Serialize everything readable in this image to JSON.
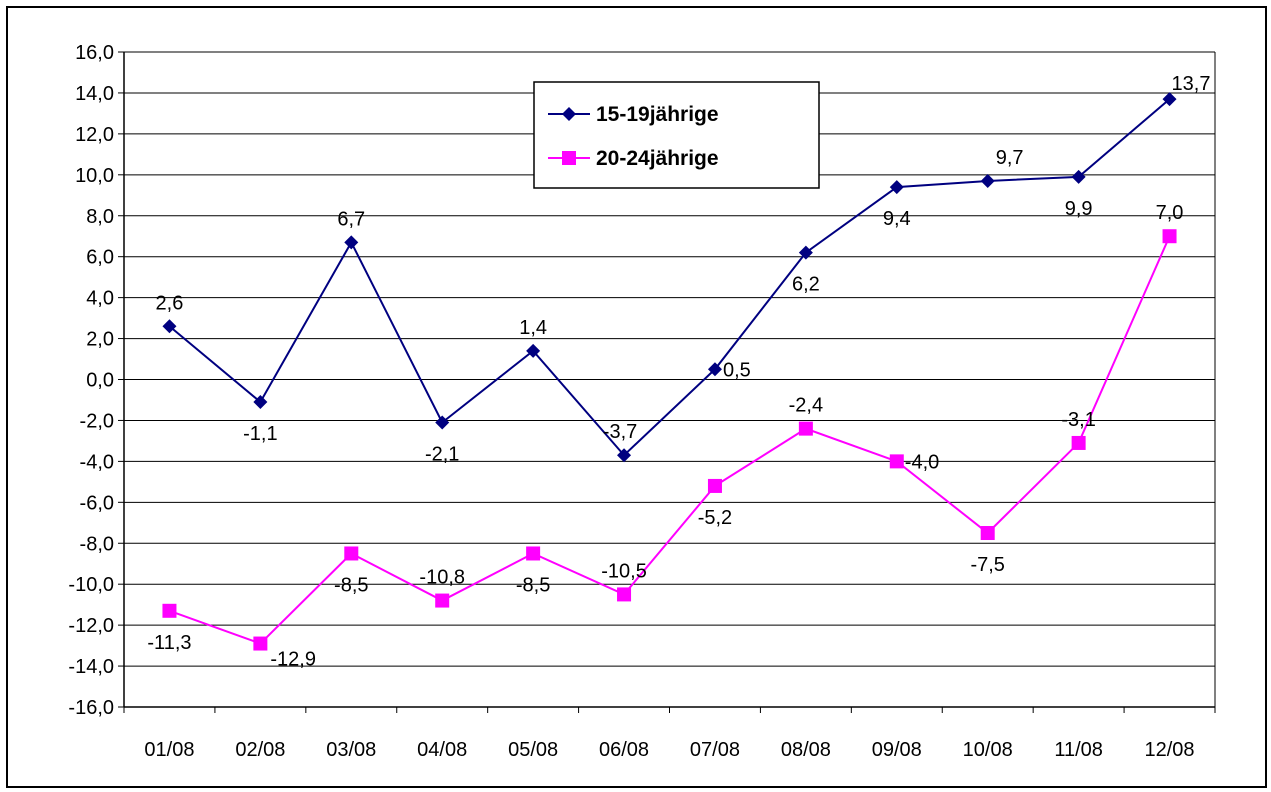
{
  "chart_data": {
    "type": "line",
    "categories": [
      "01/08",
      "02/08",
      "03/08",
      "04/08",
      "05/08",
      "06/08",
      "07/08",
      "08/08",
      "09/08",
      "10/08",
      "11/08",
      "12/08"
    ],
    "series": [
      {
        "name": "15-19jährige",
        "values": [
          2.6,
          -1.1,
          6.7,
          -2.1,
          1.4,
          -3.7,
          0.5,
          6.2,
          9.4,
          9.7,
          9.9,
          13.7
        ],
        "labels": [
          "2,6",
          "-1,1",
          "6,7",
          "-2,1",
          "1,4",
          "-3,7",
          "0,5",
          "6,2",
          "9,4",
          "9,7",
          "9,9",
          "13,7"
        ],
        "color": "#000080",
        "marker": "diamond"
      },
      {
        "name": "20-24jährige",
        "values": [
          -11.3,
          -12.9,
          -8.5,
          -10.8,
          -8.5,
          -10.5,
          -5.2,
          -2.4,
          -4.0,
          -7.5,
          -3.1,
          7.0
        ],
        "labels": [
          "-11,3",
          "-12,9",
          "-8,5",
          "-10,8",
          "-8,5",
          "-10,5",
          "-5,2",
          "-2,4",
          "-4,0",
          "-7,5",
          "-3,1",
          "7,0"
        ],
        "color": "#FF00FF",
        "marker": "square"
      }
    ],
    "ylim": [
      -16,
      16
    ],
    "ytick_labels": [
      "16,0",
      "14,0",
      "12,0",
      "10,0",
      "8,0",
      "6,0",
      "4,0",
      "2,0",
      "0,0",
      "-2,0",
      "-4,0",
      "-6,0",
      "-8,0",
      "-10,0",
      "-12,0",
      "-14,0",
      "-16,0"
    ],
    "grid": true,
    "legend_position": "top-center"
  }
}
